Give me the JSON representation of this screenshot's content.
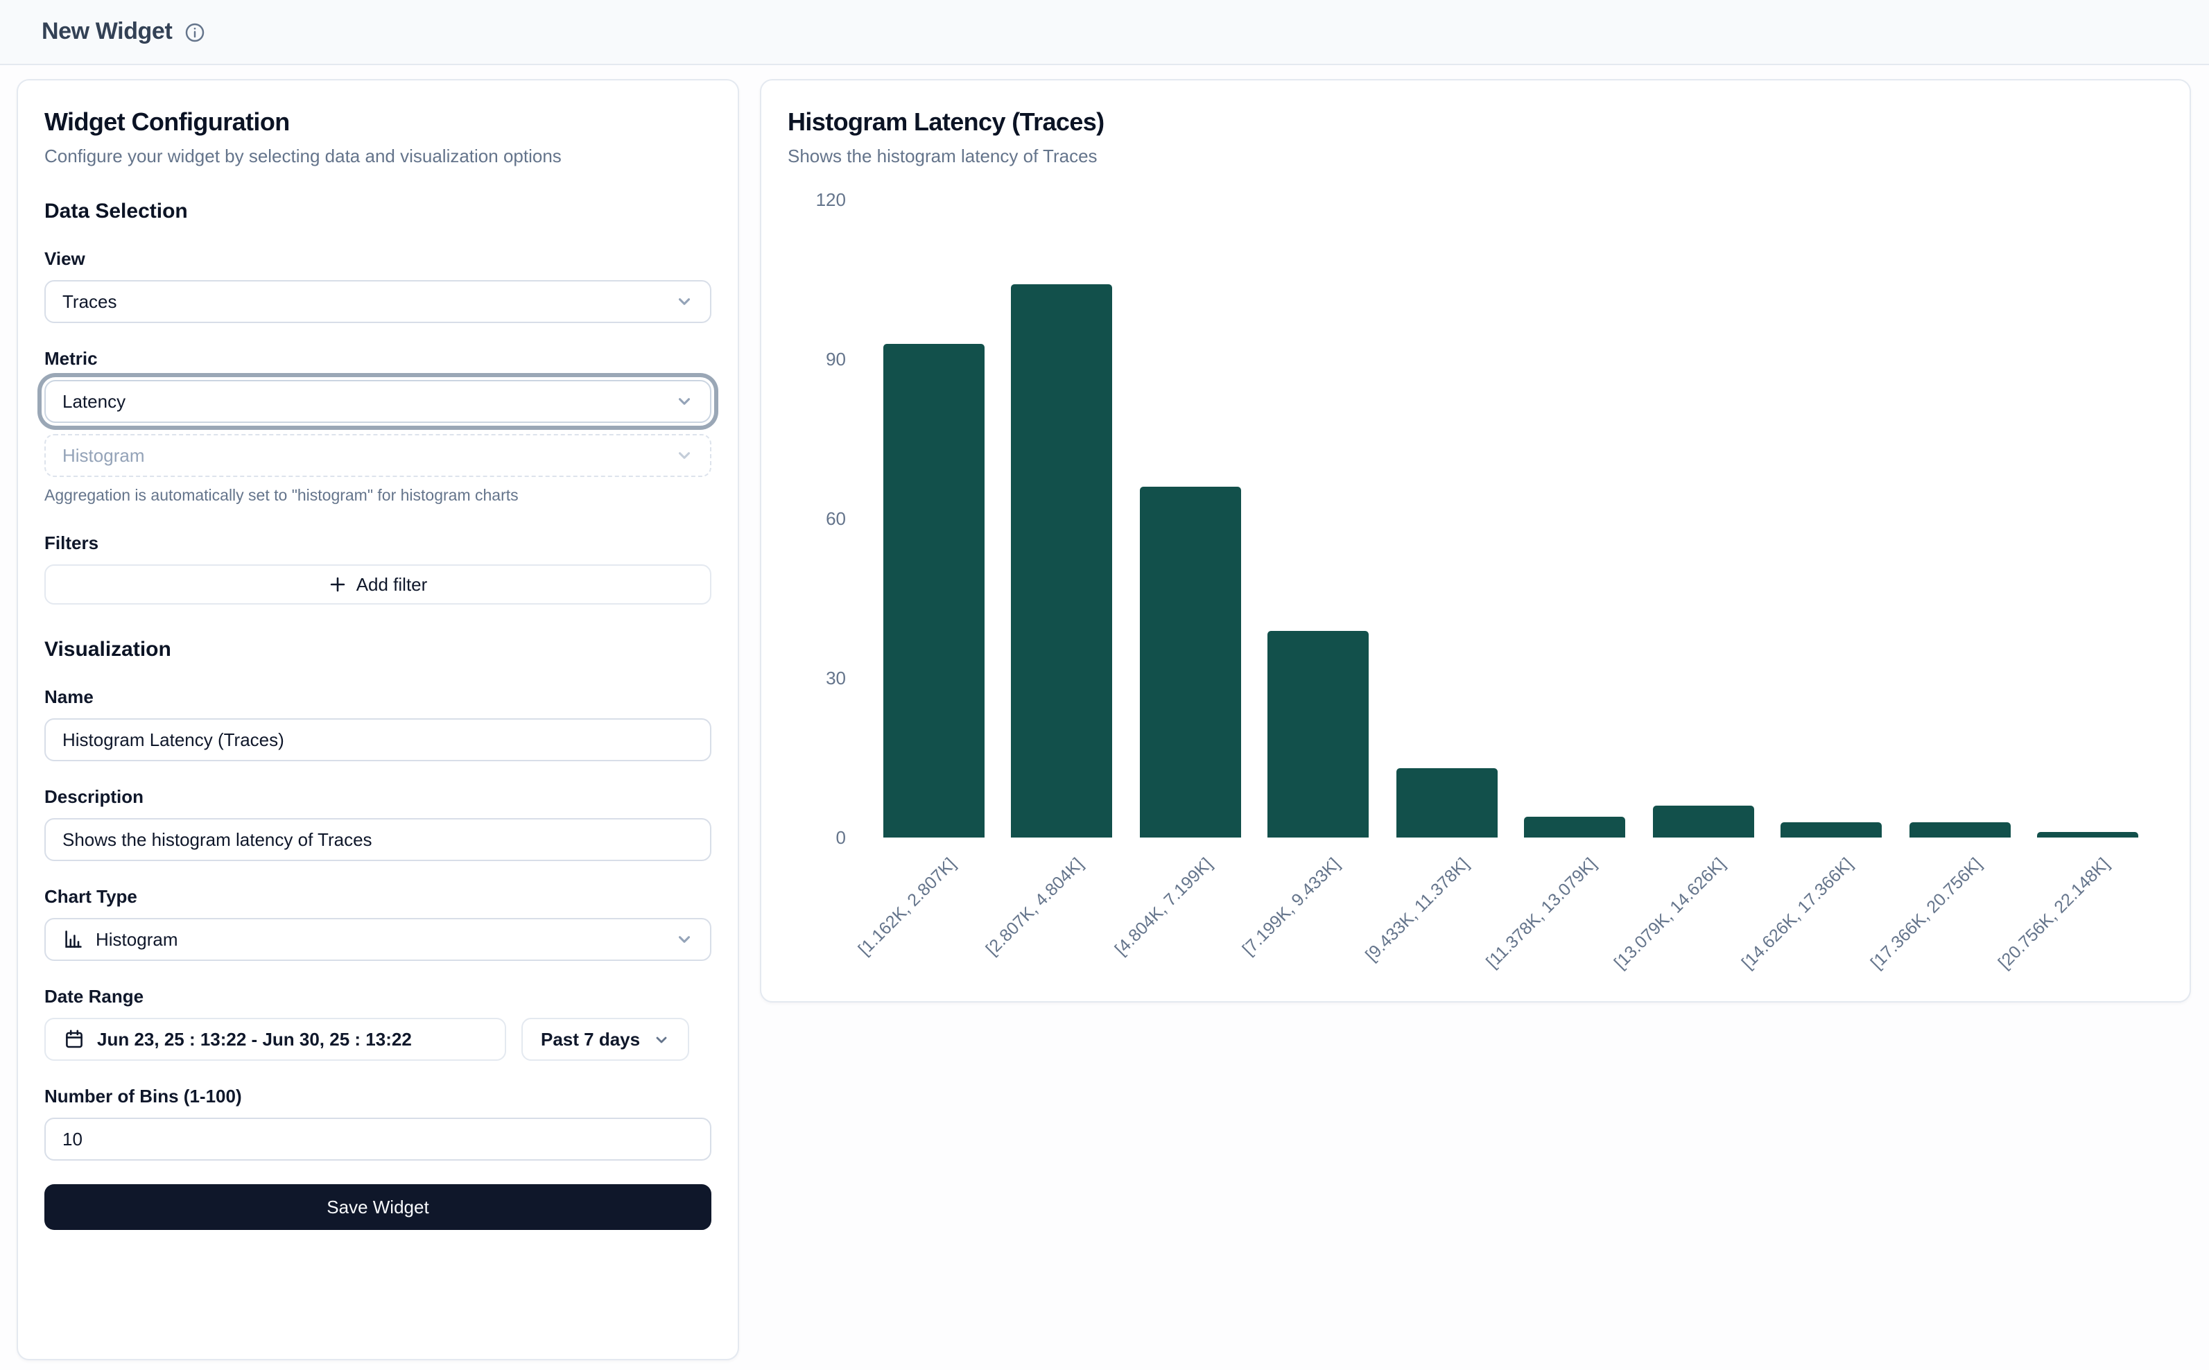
{
  "header": {
    "title": "New Widget"
  },
  "config_panel": {
    "title": "Widget Configuration",
    "subtitle": "Configure your widget by selecting data and visualization options",
    "data_selection": {
      "heading": "Data Selection",
      "view_label": "View",
      "view_value": "Traces",
      "metric_label": "Metric",
      "metric_value": "Latency",
      "aggregation_value": "Histogram",
      "aggregation_help": "Aggregation is automatically set to \"histogram\" for histogram charts",
      "filters_label": "Filters",
      "add_filter_label": "Add filter"
    },
    "visualization": {
      "heading": "Visualization",
      "name_label": "Name",
      "name_value": "Histogram Latency (Traces)",
      "description_label": "Description",
      "description_value": "Shows the histogram latency of Traces",
      "chart_type_label": "Chart Type",
      "chart_type_value": "Histogram",
      "date_range_label": "Date Range",
      "date_range_value": "Jun 23, 25 : 13:22 - Jun 30, 25 : 13:22",
      "date_preset_value": "Past 7 days",
      "bins_label": "Number of Bins (1-100)",
      "bins_value": "10",
      "save_label": "Save Widget"
    }
  },
  "preview_panel": {
    "title": "Histogram Latency (Traces)",
    "subtitle": "Shows the histogram latency of Traces"
  },
  "chart_data": {
    "type": "bar",
    "title": "Histogram Latency (Traces)",
    "categories": [
      "[1.162K, 2.807K]",
      "[2.807K, 4.804K]",
      "[4.804K, 7.199K]",
      "[7.199K, 9.433K]",
      "[9.433K, 11.378K]",
      "[11.378K, 13.079K]",
      "[13.079K, 14.626K]",
      "[14.626K, 17.366K]",
      "[17.366K, 20.756K]",
      "[20.756K, 22.148K]"
    ],
    "values": [
      93,
      104,
      66,
      39,
      13,
      4,
      6,
      3,
      3,
      1
    ],
    "xlabel": "",
    "ylabel": "",
    "yticks": [
      0,
      30,
      60,
      90,
      120
    ],
    "ylim": [
      0,
      120
    ],
    "x_tick_rotation": -45,
    "grid": false,
    "legend": false,
    "bar_color": "#12504b"
  }
}
